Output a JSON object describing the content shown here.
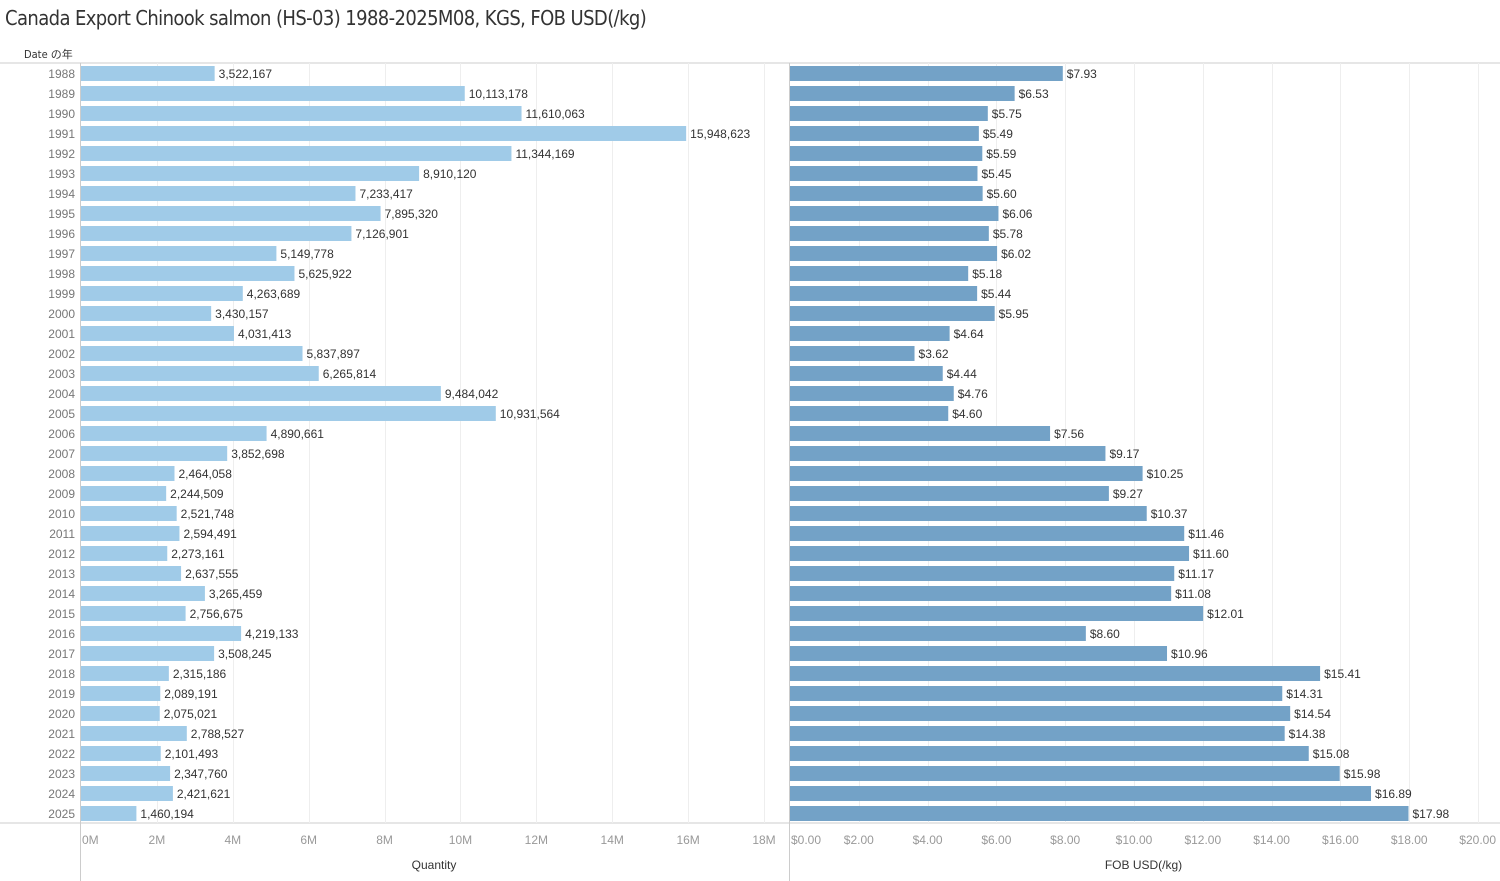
{
  "title": "Canada Export Chinook salmon (HS-03) 1988-2025M08, KGS, FOB USD(/kg)",
  "row_header": "Date の年",
  "colors": {
    "quantity_bar": "#a0cbe8",
    "fob_bar": "#73a2c7",
    "grid": "#eeeeee",
    "axis": "#cccccc"
  },
  "chart_data": [
    {
      "type": "bar",
      "orientation": "horizontal",
      "xlabel": "Quantity",
      "ylabel": "Date の年",
      "xlim": [
        0,
        18000000
      ],
      "tick_values": [
        0,
        2000000,
        4000000,
        6000000,
        8000000,
        10000000,
        12000000,
        14000000,
        16000000,
        18000000
      ],
      "tick_labels": [
        "0M",
        "2M",
        "4M",
        "6M",
        "8M",
        "10M",
        "12M",
        "14M",
        "16M",
        "18M"
      ],
      "categories": [
        "1988",
        "1989",
        "1990",
        "1991",
        "1992",
        "1993",
        "1994",
        "1995",
        "1996",
        "1997",
        "1998",
        "1999",
        "2000",
        "2001",
        "2002",
        "2003",
        "2004",
        "2005",
        "2006",
        "2007",
        "2008",
        "2009",
        "2010",
        "2011",
        "2012",
        "2013",
        "2014",
        "2015",
        "2016",
        "2017",
        "2018",
        "2019",
        "2020",
        "2021",
        "2022",
        "2023",
        "2024",
        "2025"
      ],
      "values": [
        3522167,
        10113178,
        11610063,
        15948623,
        11344169,
        8910120,
        7233417,
        7895320,
        7126901,
        5149778,
        5625922,
        4263689,
        3430157,
        4031413,
        5837897,
        6265814,
        9484042,
        10931564,
        4890661,
        3852698,
        2464058,
        2244509,
        2521748,
        2594491,
        2273161,
        2637555,
        3265459,
        2756675,
        4219133,
        3508245,
        2315186,
        2089191,
        2075021,
        2788527,
        2101493,
        2347760,
        2421621,
        1460194
      ],
      "labels": [
        "3,522,167",
        "10,113,178",
        "11,610,063",
        "15,948,623",
        "11,344,169",
        "8,910,120",
        "7,233,417",
        "7,895,320",
        "7,126,901",
        "5,149,778",
        "5,625,922",
        "4,263,689",
        "3,430,157",
        "4,031,413",
        "5,837,897",
        "6,265,814",
        "9,484,042",
        "10,931,564",
        "4,890,661",
        "3,852,698",
        "2,464,058",
        "2,244,509",
        "2,521,748",
        "2,594,491",
        "2,273,161",
        "2,637,555",
        "3,265,459",
        "2,756,675",
        "4,219,133",
        "3,508,245",
        "2,315,186",
        "2,089,191",
        "2,075,021",
        "2,788,527",
        "2,101,493",
        "2,347,760",
        "2,421,621",
        "1,460,194"
      ],
      "grid": true
    },
    {
      "type": "bar",
      "orientation": "horizontal",
      "xlabel": "FOB USD(/kg)",
      "xlim": [
        0,
        20
      ],
      "tick_values": [
        0,
        2,
        4,
        6,
        8,
        10,
        12,
        14,
        16,
        18,
        20
      ],
      "tick_labels": [
        "$0.00",
        "$2.00",
        "$4.00",
        "$6.00",
        "$8.00",
        "$10.00",
        "$12.00",
        "$14.00",
        "$16.00",
        "$18.00",
        "$20.00"
      ],
      "categories": [
        "1988",
        "1989",
        "1990",
        "1991",
        "1992",
        "1993",
        "1994",
        "1995",
        "1996",
        "1997",
        "1998",
        "1999",
        "2000",
        "2001",
        "2002",
        "2003",
        "2004",
        "2005",
        "2006",
        "2007",
        "2008",
        "2009",
        "2010",
        "2011",
        "2012",
        "2013",
        "2014",
        "2015",
        "2016",
        "2017",
        "2018",
        "2019",
        "2020",
        "2021",
        "2022",
        "2023",
        "2024",
        "2025"
      ],
      "values": [
        7.93,
        6.53,
        5.75,
        5.49,
        5.59,
        5.45,
        5.6,
        6.06,
        5.78,
        6.02,
        5.18,
        5.44,
        5.95,
        4.64,
        3.62,
        4.44,
        4.76,
        4.6,
        7.56,
        9.17,
        10.25,
        9.27,
        10.37,
        11.46,
        11.6,
        11.17,
        11.08,
        12.01,
        8.6,
        10.96,
        15.41,
        14.31,
        14.54,
        14.38,
        15.08,
        15.98,
        16.89,
        17.98
      ],
      "labels": [
        "$7.93",
        "$6.53",
        "$5.75",
        "$5.49",
        "$5.59",
        "$5.45",
        "$5.60",
        "$6.06",
        "$5.78",
        "$6.02",
        "$5.18",
        "$5.44",
        "$5.95",
        "$4.64",
        "$3.62",
        "$4.44",
        "$4.76",
        "$4.60",
        "$7.56",
        "$9.17",
        "$10.25",
        "$9.27",
        "$10.37",
        "$11.46",
        "$11.60",
        "$11.17",
        "$11.08",
        "$12.01",
        "$8.60",
        "$10.96",
        "$15.41",
        "$14.31",
        "$14.54",
        "$14.38",
        "$15.08",
        "$15.98",
        "$16.89",
        "$17.98"
      ],
      "grid": true
    }
  ]
}
